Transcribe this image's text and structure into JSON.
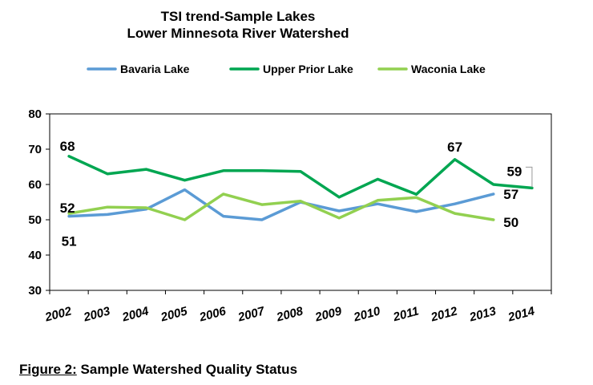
{
  "chart_data": {
    "type": "line",
    "title": [
      "TSI trend-Sample Lakes",
      "Lower Minnesota River Watershed"
    ],
    "x": [
      "2002",
      "2003",
      "2004",
      "2005",
      "2006",
      "2007",
      "2008",
      "2009",
      "2010",
      "2011",
      "2012",
      "2013",
      "2014"
    ],
    "ylim": [
      30,
      80
    ],
    "yticks": [
      30,
      40,
      50,
      60,
      70,
      80
    ],
    "grid": false,
    "legend_position": "top",
    "series": [
      {
        "name": "Bavaria Lake",
        "color": "#5b9bd5",
        "values": [
          51,
          51.5,
          53,
          58.5,
          51,
          50,
          55,
          52.5,
          54.5,
          52.3,
          54.5,
          57.3,
          null
        ]
      },
      {
        "name": "Upper Prior Lake",
        "color": "#00a651",
        "values": [
          68,
          63,
          64.3,
          61.2,
          63.9,
          63.9,
          63.7,
          56.4,
          61.5,
          57.2,
          67.1,
          60,
          59
        ]
      },
      {
        "name": "Waconia Lake",
        "color": "#92d050",
        "values": [
          51.8,
          53.6,
          53.4,
          50,
          57.3,
          54.3,
          55.3,
          50.5,
          55.5,
          56.3,
          51.8,
          50,
          null
        ]
      }
    ],
    "annotations": [
      {
        "text": "68",
        "series": "Upper Prior Lake",
        "x": "2002"
      },
      {
        "text": "52",
        "series": "Waconia Lake",
        "x": "2002"
      },
      {
        "text": "51",
        "series": "Bavaria Lake",
        "x": "2002"
      },
      {
        "text": "67",
        "series": "Upper Prior Lake",
        "x": "2012"
      },
      {
        "text": "59",
        "series": "Upper Prior Lake",
        "x": "2014"
      },
      {
        "text": "57",
        "series": "Bavaria Lake",
        "x": "2013"
      },
      {
        "text": "50",
        "series": "Waconia Lake",
        "x": "2013"
      }
    ]
  },
  "caption": {
    "label": "Figure 2:",
    "text": " Sample Watershed Quality Status"
  }
}
